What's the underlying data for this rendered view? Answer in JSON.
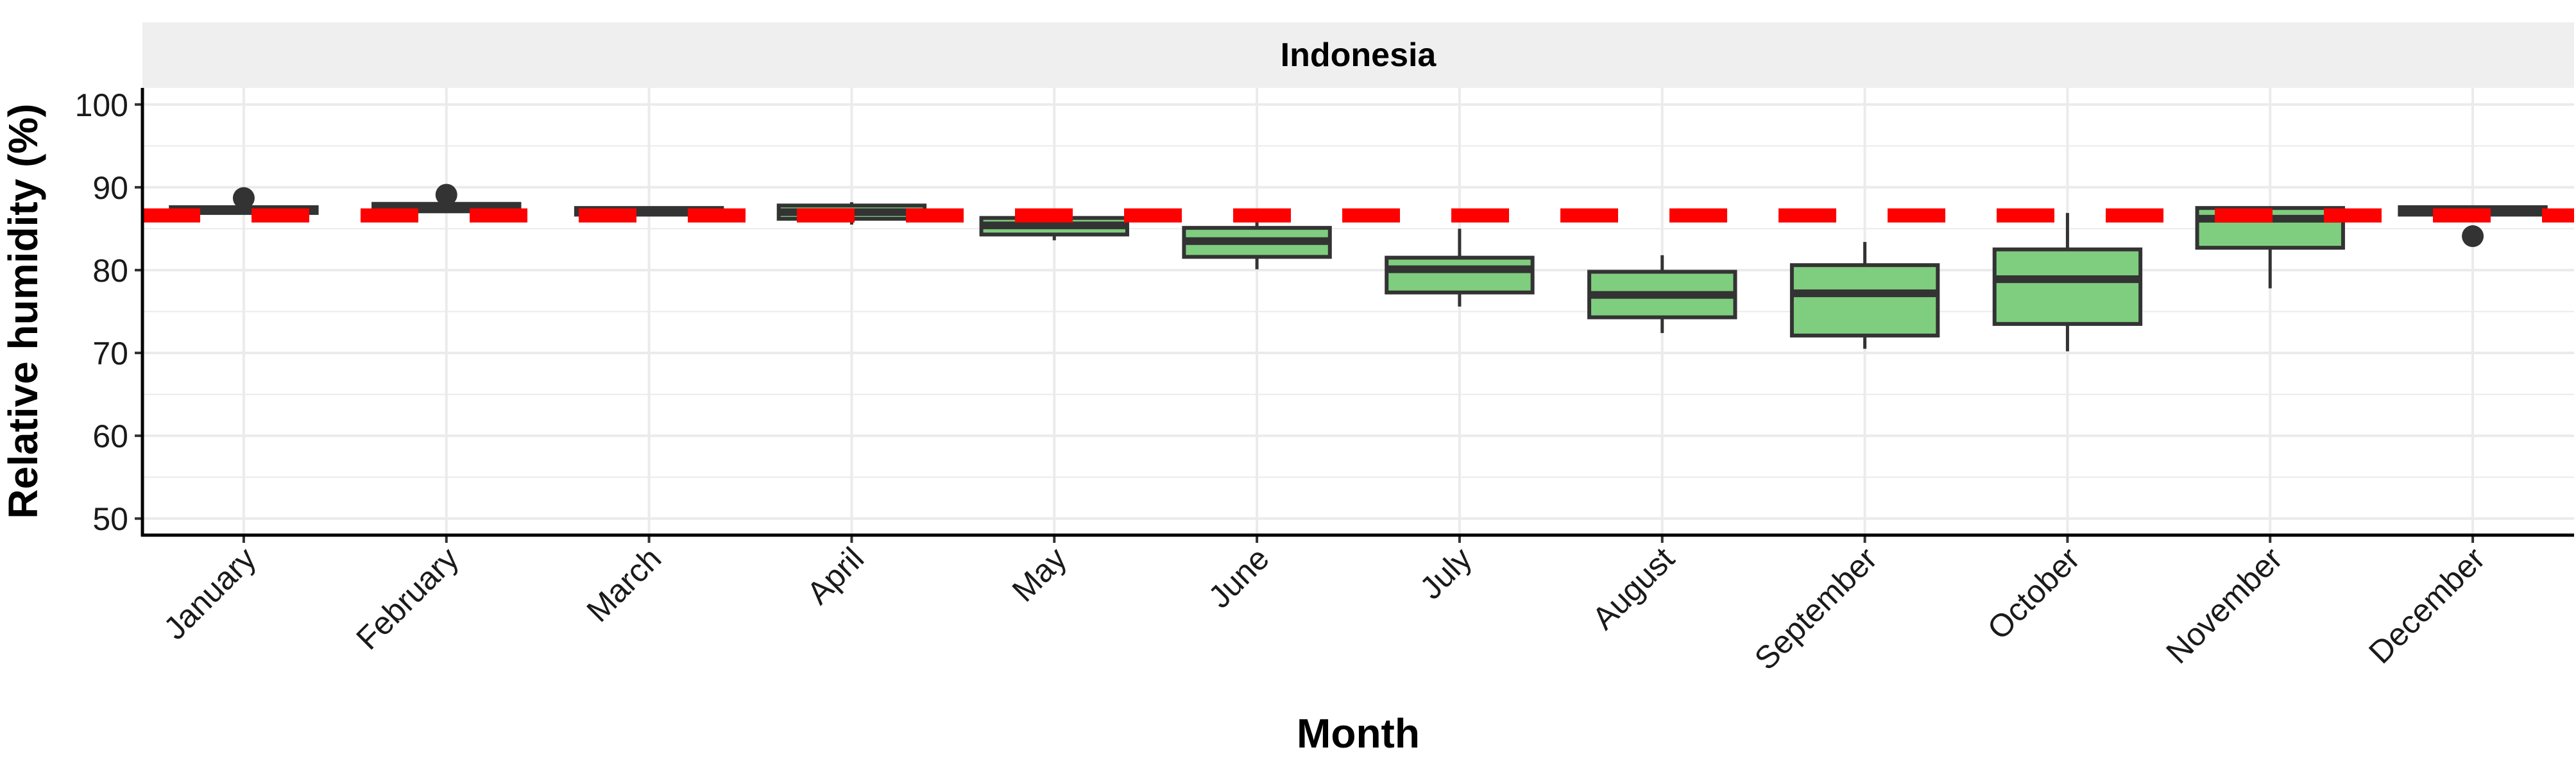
{
  "chart_data": {
    "type": "box",
    "facet_label": "Indonesia",
    "xlabel": "Month",
    "ylabel": "Relative humidity (%)",
    "ylim": [
      48,
      102
    ],
    "yticks": [
      50,
      60,
      70,
      80,
      90,
      100
    ],
    "grid": true,
    "reference_line": {
      "value": 86.6,
      "style": "dashed",
      "color": "#ff0000"
    },
    "colors": {
      "box_fill": "#7fcd7f",
      "box_stroke": "#333333",
      "strip_bg": "#efefef",
      "grid": "#ebebeb"
    },
    "categories": [
      "January",
      "February",
      "March",
      "April",
      "May",
      "June",
      "July",
      "August",
      "September",
      "October",
      "November",
      "December"
    ],
    "boxes": [
      {
        "month": "January",
        "min": 86.9,
        "q1": 86.9,
        "median": 87.3,
        "q3": 87.6,
        "max": 87.6,
        "outliers": [
          88.7
        ]
      },
      {
        "month": "February",
        "min": 87.0,
        "q1": 87.1,
        "median": 87.5,
        "q3": 88.0,
        "max": 88.0,
        "outliers": [
          89.1
        ]
      },
      {
        "month": "March",
        "min": 86.7,
        "q1": 86.7,
        "median": 87.1,
        "q3": 87.5,
        "max": 87.5,
        "outliers": []
      },
      {
        "month": "April",
        "min": 85.5,
        "q1": 86.2,
        "median": 87.0,
        "q3": 87.8,
        "max": 88.2,
        "outliers": []
      },
      {
        "month": "May",
        "min": 83.6,
        "q1": 84.3,
        "median": 85.4,
        "q3": 86.3,
        "max": 86.6,
        "outliers": []
      },
      {
        "month": "June",
        "min": 80.1,
        "q1": 81.6,
        "median": 83.5,
        "q3": 85.1,
        "max": 86.6,
        "outliers": []
      },
      {
        "month": "July",
        "min": 75.6,
        "q1": 77.3,
        "median": 80.1,
        "q3": 81.5,
        "max": 85.0,
        "outliers": []
      },
      {
        "month": "August",
        "min": 72.4,
        "q1": 74.3,
        "median": 77.0,
        "q3": 79.8,
        "max": 81.8,
        "outliers": []
      },
      {
        "month": "September",
        "min": 70.5,
        "q1": 72.1,
        "median": 77.2,
        "q3": 80.6,
        "max": 83.4,
        "outliers": []
      },
      {
        "month": "October",
        "min": 70.2,
        "q1": 73.5,
        "median": 78.9,
        "q3": 82.5,
        "max": 86.9,
        "outliers": []
      },
      {
        "month": "November",
        "min": 77.8,
        "q1": 82.7,
        "median": 86.2,
        "q3": 87.5,
        "max": 87.5,
        "outliers": []
      },
      {
        "month": "December",
        "min": 86.5,
        "q1": 86.7,
        "median": 87.2,
        "q3": 87.6,
        "max": 87.6,
        "outliers": [
          84.1
        ]
      }
    ]
  }
}
